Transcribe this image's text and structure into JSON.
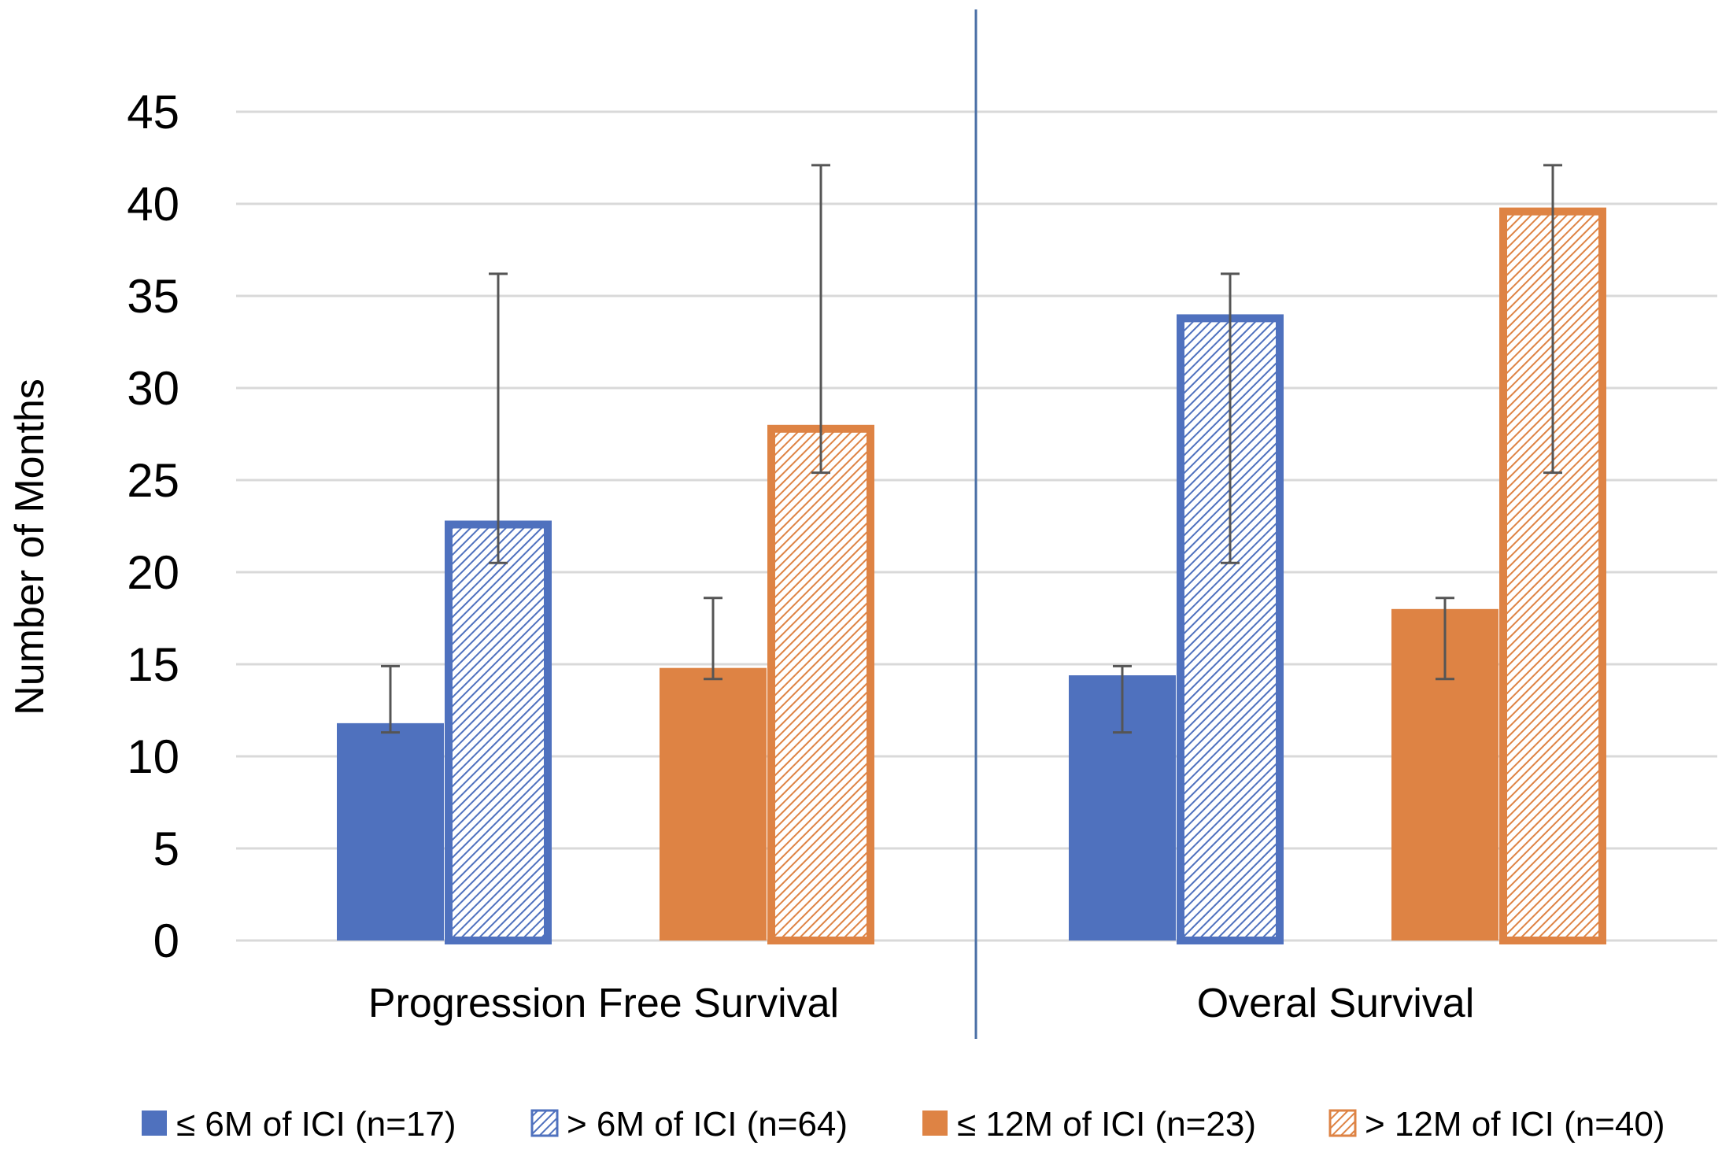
{
  "chart_data": {
    "type": "bar",
    "title": "",
    "xlabel": "",
    "ylabel": "Number of Months",
    "ylim": [
      0,
      45
    ],
    "yticks": [
      0,
      5,
      10,
      15,
      20,
      25,
      30,
      35,
      40,
      45
    ],
    "grid": true,
    "legend_position": "bottom",
    "categories": [
      "Progression Free Survival",
      "Overal Survival"
    ],
    "series": [
      {
        "name": "≤ 6M of ICI (n=17)",
        "pattern": "solid",
        "color": "#4f71be",
        "values": [
          11.8,
          14.4
        ],
        "error_low": [
          11.3,
          11.3
        ],
        "error_high": [
          14.9,
          14.9
        ]
      },
      {
        "name": "> 6M of ICI (n=64)",
        "pattern": "hatched",
        "color": "#4f71be",
        "values": [
          22.8,
          34.0
        ],
        "error_low": [
          20.5,
          20.5
        ],
        "error_high": [
          36.2,
          36.2
        ]
      },
      {
        "name": "≤ 12M of ICI (n=23)",
        "pattern": "solid",
        "color": "#de8344",
        "values": [
          14.8,
          18.0
        ],
        "error_low": [
          14.2,
          14.2
        ],
        "error_high": [
          18.6,
          18.6
        ]
      },
      {
        "name": "> 12M of ICI (n=40)",
        "pattern": "hatched",
        "color": "#de8344",
        "values": [
          28.0,
          39.8
        ],
        "error_low": [
          25.4,
          25.4
        ],
        "error_high": [
          42.1,
          42.1
        ]
      }
    ],
    "error_bar_color": "#555555",
    "gridline_color": "#d9d9d9",
    "divider_color": "#4a6fa5"
  }
}
